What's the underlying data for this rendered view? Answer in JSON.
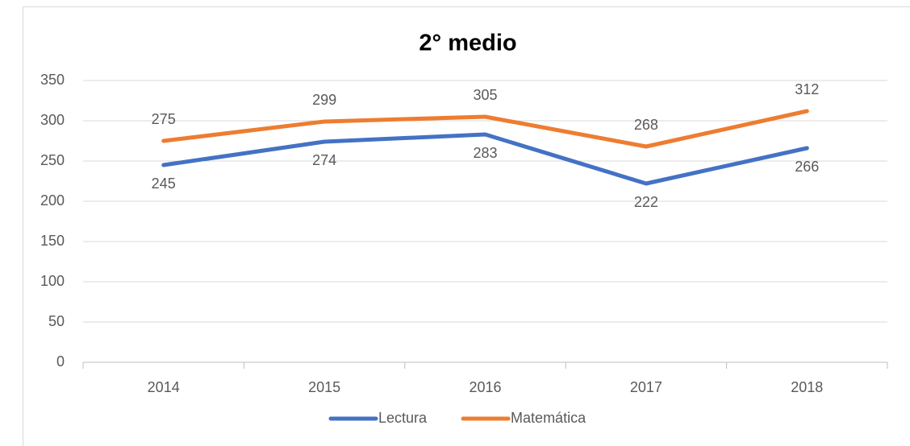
{
  "chart_data": {
    "type": "line",
    "title": "2° medio",
    "categories": [
      "2014",
      "2015",
      "2016",
      "2017",
      "2018"
    ],
    "series": [
      {
        "name": "Lectura",
        "color": "#4472c4",
        "values": [
          245,
          274,
          283,
          222,
          266
        ]
      },
      {
        "name": "Matemática",
        "color": "#ed7d31",
        "values": [
          275,
          299,
          305,
          268,
          312
        ]
      }
    ],
    "ylim": [
      0,
      350
    ],
    "yticks": [
      0,
      50,
      100,
      150,
      200,
      250,
      300,
      350
    ],
    "grid": true,
    "legend": "bottom"
  }
}
